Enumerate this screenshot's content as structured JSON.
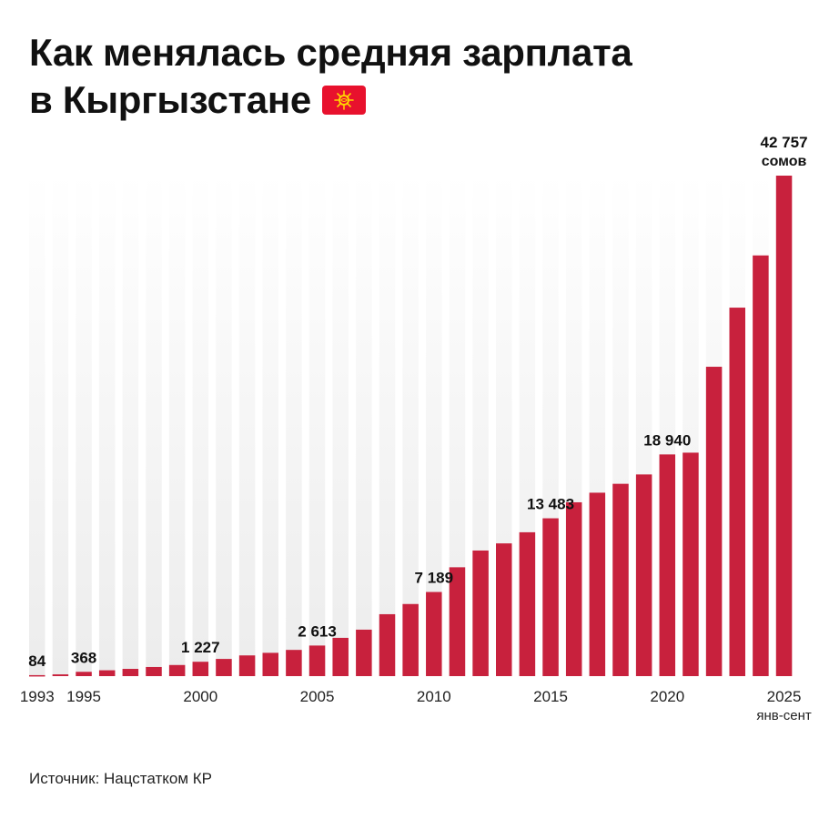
{
  "title_line1": "Как менялась средняя зарплата",
  "title_line2": "в Кыргызстане",
  "source": "Источник: Нацстатком КР",
  "colors": {
    "bar": "#c8213d",
    "text": "#111111",
    "track_top": "#ffffff",
    "track_bottom": "#ececec"
  },
  "chart_data": {
    "type": "bar",
    "title": "Как менялась средняя зарплата в Кыргызстане",
    "xlabel": "",
    "ylabel": "",
    "ylim": [
      0,
      42757
    ],
    "unit": "сомов",
    "categories": [
      "1993",
      "1994",
      "1995",
      "1996",
      "1997",
      "1998",
      "1999",
      "2000",
      "2001",
      "2002",
      "2003",
      "2004",
      "2005",
      "2006",
      "2007",
      "2008",
      "2009",
      "2010",
      "2011",
      "2012",
      "2013",
      "2014",
      "2015",
      "2016",
      "2017",
      "2018",
      "2019",
      "2020",
      "2021",
      "2022",
      "2023",
      "2024",
      "2025"
    ],
    "values": [
      84,
      150,
      368,
      500,
      620,
      780,
      950,
      1227,
      1470,
      1770,
      1990,
      2240,
      2613,
      3270,
      3970,
      5290,
      6160,
      7189,
      9300,
      10730,
      11340,
      12290,
      13483,
      14850,
      15670,
      16430,
      17230,
      18940,
      19090,
      26430,
      31480,
      35940,
      42757
    ],
    "value_labels": [
      {
        "index": 0,
        "text": "84"
      },
      {
        "index": 2,
        "text": "368"
      },
      {
        "index": 7,
        "text": "1 227"
      },
      {
        "index": 12,
        "text": "2 613"
      },
      {
        "index": 17,
        "text": "7 189"
      },
      {
        "index": 22,
        "text": "13 483"
      },
      {
        "index": 27,
        "text": "18 940"
      },
      {
        "index": 32,
        "text": "42 757"
      }
    ],
    "unit_label": {
      "index": 32,
      "text": "сомов"
    },
    "x_tick_labels": [
      {
        "index": 0,
        "text": "1993"
      },
      {
        "index": 2,
        "text": "1995"
      },
      {
        "index": 7,
        "text": "2000"
      },
      {
        "index": 12,
        "text": "2005"
      },
      {
        "index": 17,
        "text": "2010"
      },
      {
        "index": 22,
        "text": "2015"
      },
      {
        "index": 27,
        "text": "2020"
      },
      {
        "index": 32,
        "text": "2025"
      }
    ],
    "x_sublabel": {
      "index": 32,
      "text": "янв-сент"
    },
    "grid": false,
    "legend": "none"
  }
}
